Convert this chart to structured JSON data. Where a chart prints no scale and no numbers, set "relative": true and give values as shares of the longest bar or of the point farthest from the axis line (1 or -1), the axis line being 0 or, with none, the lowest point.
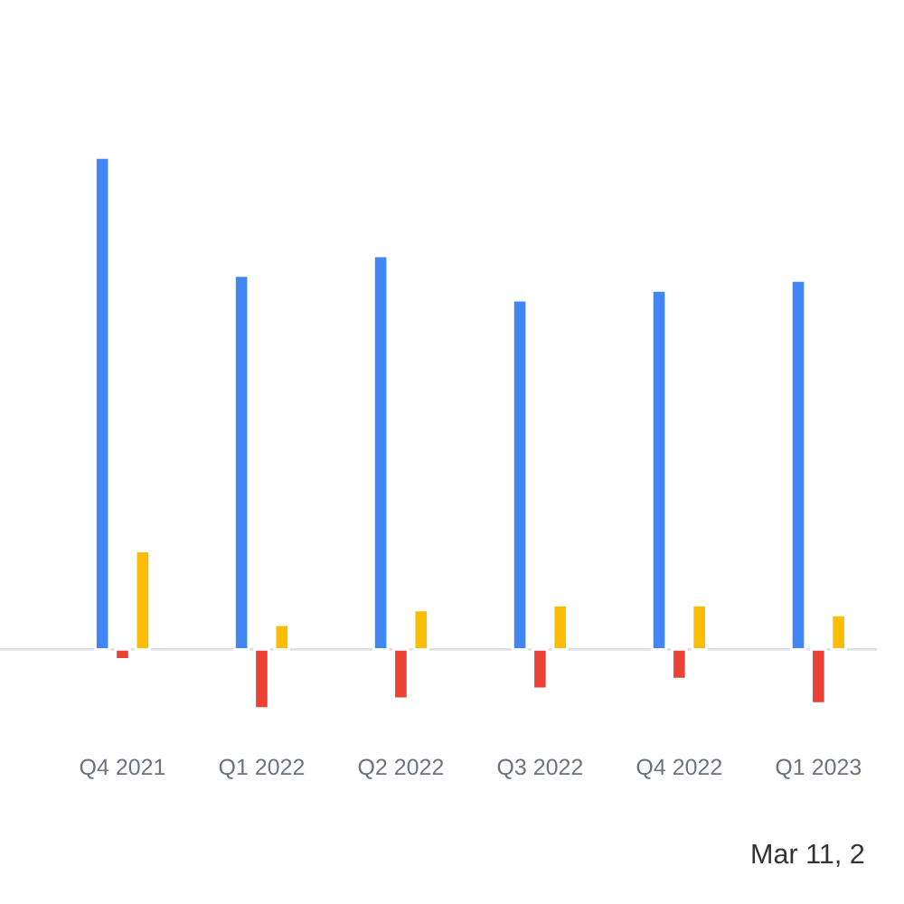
{
  "chart_data": {
    "type": "bar",
    "relative": true,
    "categories": [
      "Q4 2021",
      "Q1 2022",
      "Q2 2022",
      "Q3 2022",
      "Q4 2022",
      "Q1 2023"
    ],
    "series": [
      {
        "color": "#4285f4",
        "values": [
          1,
          0.76,
          0.8,
          0.71,
          0.73,
          0.75
        ]
      },
      {
        "color": "#ea4335",
        "values": [
          -0.02,
          -0.12,
          -0.1,
          -0.08,
          -0.06,
          -0.11
        ]
      },
      {
        "color": "#fbbc04",
        "values": [
          0.2,
          0.05,
          0.08,
          0.09,
          0.09,
          0.07
        ]
      }
    ],
    "annotations": [
      "Mar 11, 2"
    ]
  }
}
